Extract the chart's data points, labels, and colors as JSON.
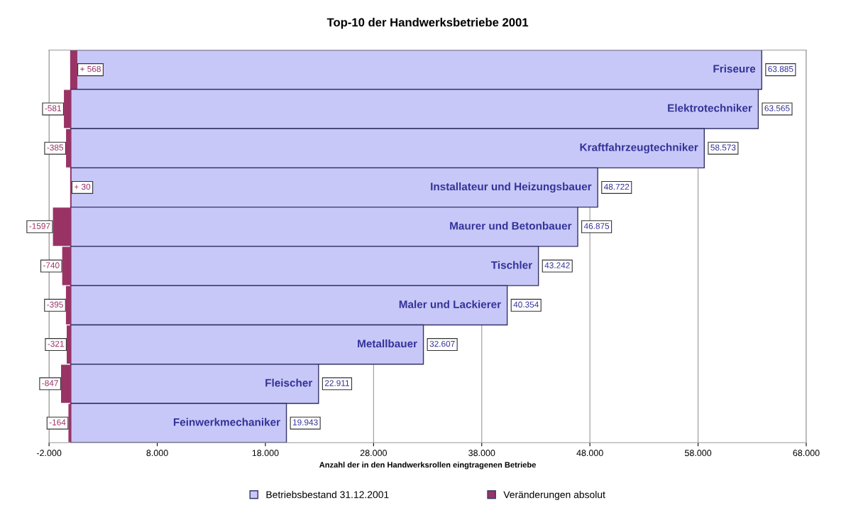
{
  "chart_data": {
    "type": "bar",
    "orientation": "horizontal",
    "title": "Top-10 der Handwerksbetriebe 2001",
    "xlabel": "Anzahl der in den Handwerksrollen eingtragenen Betriebe",
    "categories": [
      "Friseure",
      "Elektrotechniker",
      "Kraftfahrzeugtechniker",
      "Installateur und Heizungsbauer",
      "Maurer und Betonbauer",
      "Tischler",
      "Maler und Lackierer",
      "Metallbauer",
      "Fleischer",
      "Feinwerkmechaniker"
    ],
    "series": [
      {
        "name": "Betriebsbestand 31.12.2001",
        "color": "#c8c8f8",
        "values": [
          63885,
          63565,
          58573,
          48722,
          46875,
          43242,
          40354,
          32607,
          22911,
          19943
        ],
        "value_labels": [
          "63.885",
          "63.565",
          "58.573",
          "48.722",
          "46.875",
          "43.242",
          "40.354",
          "32.607",
          "22.911",
          "19.943"
        ]
      },
      {
        "name": "Veränderungen absolut",
        "color": "#993366",
        "values": [
          568,
          -581,
          -385,
          30,
          -1597,
          -740,
          -395,
          -321,
          -847,
          -164
        ],
        "value_labels": [
          "+ 568",
          "-581",
          "-385",
          "+ 30",
          "-1597",
          "-740",
          "-395",
          "-321",
          "-847",
          "-164"
        ]
      }
    ],
    "xlim": [
      -2000,
      68000
    ],
    "xticks": [
      {
        "value": -2000,
        "label": "-2.000"
      },
      {
        "value": 8000,
        "label": "8.000"
      },
      {
        "value": 18000,
        "label": "18.000"
      },
      {
        "value": 28000,
        "label": "28.000"
      },
      {
        "value": 38000,
        "label": "38.000"
      },
      {
        "value": 48000,
        "label": "48.000"
      },
      {
        "value": 58000,
        "label": "58.000"
      },
      {
        "value": 68000,
        "label": "68.000"
      }
    ],
    "grid": "x",
    "legend": "bottom",
    "tick_labels": "x"
  }
}
